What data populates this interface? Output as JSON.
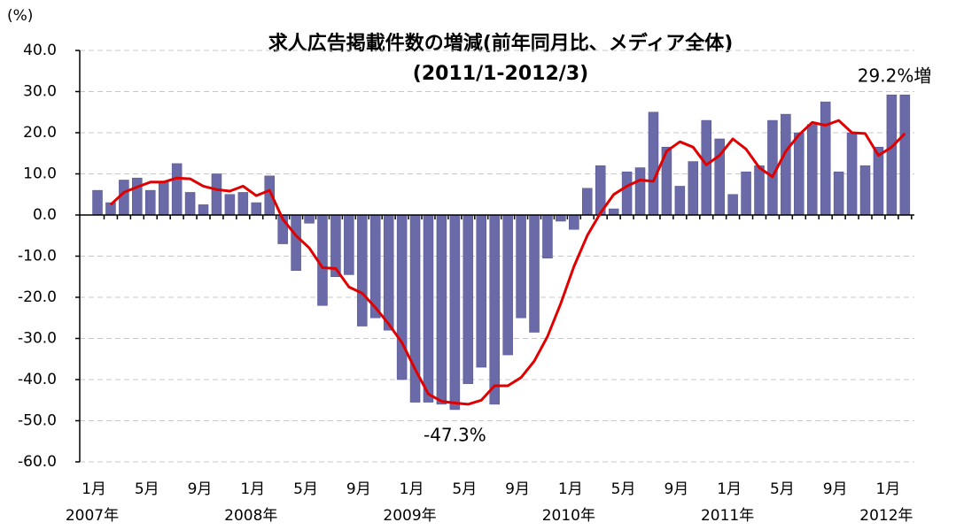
{
  "chart_data": {
    "type": "bar-line",
    "title": "求人広告掲載件数の増減(前年同月比、メディア全体)",
    "subtitle": "(2011/1-2012/3)",
    "y_unit": "(%)",
    "categories": [
      "1月",
      null,
      null,
      null,
      "5月",
      null,
      null,
      null,
      "9月",
      null,
      null,
      null,
      "1月",
      null,
      null,
      null,
      "5月",
      null,
      null,
      null,
      "9月",
      null,
      null,
      null,
      "1月",
      null,
      null,
      null,
      "5月",
      null,
      null,
      null,
      "9月",
      null,
      null,
      null,
      "1月",
      null,
      null,
      null,
      "5月",
      null,
      null,
      null,
      "9月",
      null,
      null,
      null,
      "1月",
      null,
      null,
      null,
      "5月",
      null,
      null,
      null,
      "9月",
      null,
      null,
      null,
      "1月",
      null
    ],
    "x_groups": [
      "2007年",
      "2008年",
      "2009年",
      "2010年",
      "2011年",
      "2012年"
    ],
    "series": [
      {
        "type": "bar",
        "color": "#6a6aa8",
        "values": [
          6.0,
          3.0,
          8.5,
          9.0,
          6.0,
          8.0,
          12.5,
          5.5,
          2.5,
          10.0,
          5.0,
          5.5,
          3.0,
          9.5,
          -7.0,
          -13.5,
          -2.0,
          -22.0,
          -15.0,
          -14.5,
          -27.0,
          -25.0,
          -28.0,
          -40.0,
          -45.5,
          -45.5,
          -46.0,
          -47.3,
          -41.0,
          -37.0,
          -46.0,
          -34.0,
          -25.0,
          -28.5,
          -10.5,
          -1.5,
          -3.5,
          6.5,
          12.0,
          1.5,
          10.5,
          11.5,
          25.0,
          16.5,
          7.0,
          13.0,
          23.0,
          18.5,
          5.0,
          10.5,
          12.0,
          23.0,
          24.5,
          20.0,
          22.0,
          27.5,
          10.5,
          20.0,
          12.0,
          16.5,
          29.2,
          29.2
        ],
        "value_labels": [
          null,
          null,
          null,
          null,
          null,
          null,
          null,
          null,
          null,
          null,
          null,
          null,
          null,
          null,
          null,
          null,
          null,
          null,
          null,
          null,
          null,
          null,
          null,
          null,
          null,
          null,
          null,
          "-47.3%",
          null,
          null,
          null,
          null,
          null,
          null,
          null,
          null,
          null,
          null,
          null,
          null,
          null,
          null,
          null,
          null,
          null,
          null,
          null,
          null,
          null,
          null,
          null,
          null,
          null,
          null,
          null,
          null,
          null,
          null,
          null,
          null,
          null,
          "29.2%増"
        ]
      },
      {
        "type": "line",
        "color": "#e00000",
        "values": [
          null,
          2.5,
          5.5,
          6.8,
          8.0,
          8.0,
          9.0,
          8.8,
          7.0,
          6.2,
          5.8,
          7.0,
          4.7,
          6.0,
          -1.0,
          -5.0,
          -8.0,
          -12.8,
          -13.0,
          -17.5,
          -19.0,
          -22.5,
          -26.5,
          -31.0,
          -37.5,
          -43.5,
          -45.3,
          -45.7,
          -46.0,
          -45.0,
          -41.5,
          -41.5,
          -39.5,
          -35.5,
          -29.5,
          -21.5,
          -12.5,
          -5.0,
          0.5,
          5.0,
          7.0,
          8.5,
          8.2,
          15.5,
          17.8,
          16.5,
          12.2,
          14.5,
          18.5,
          16.0,
          11.5,
          9.3,
          15.5,
          19.5,
          22.5,
          21.8,
          23.0,
          20.0,
          19.8,
          14.5,
          16.5,
          19.8
        ]
      }
    ],
    "ylim": [
      -60,
      40
    ],
    "yticks": [
      {
        "value": -60,
        "label": "-60.0"
      },
      {
        "value": -50,
        "label": "-50.0"
      },
      {
        "value": -40,
        "label": "-40.0"
      },
      {
        "value": -30,
        "label": "-30.0"
      },
      {
        "value": -20,
        "label": "-20.0"
      },
      {
        "value": -10,
        "label": "-10.0"
      },
      {
        "value": 0,
        "label": "0.0"
      },
      {
        "value": 10,
        "label": "10.0"
      },
      {
        "value": 20,
        "label": "20.0"
      },
      {
        "value": 30,
        "label": "30.0"
      },
      {
        "value": 40,
        "label": "40.0"
      }
    ],
    "grid": true
  }
}
